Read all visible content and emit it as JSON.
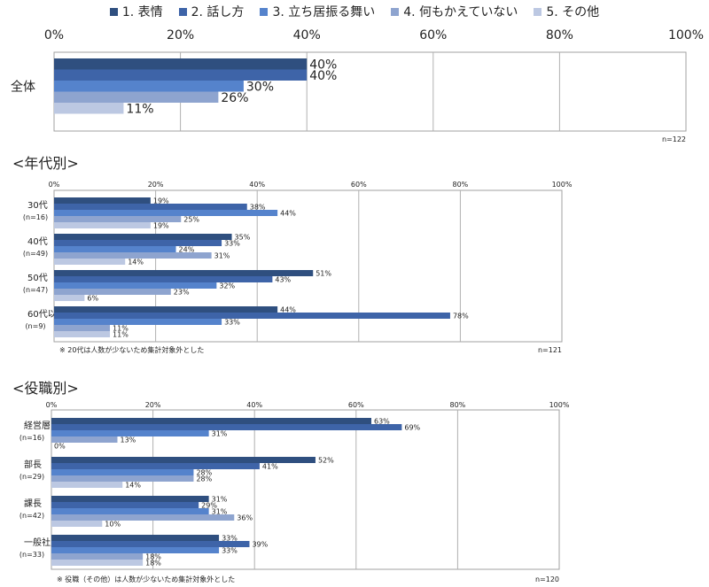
{
  "chart_data": {
    "type": "bar",
    "orientation": "horizontal",
    "series": [
      {
        "name": "1. 表情",
        "color": "#2f4f7f"
      },
      {
        "name": "2. 話し方",
        "color": "#3e64a8"
      },
      {
        "name": "3. 立ち居振る舞い",
        "color": "#5583cc"
      },
      {
        "name": "4. 何もかえていない",
        "color": "#8ea4cf"
      },
      {
        "name": "5. その他",
        "color": "#bcc8e2"
      }
    ],
    "xlim": [
      0,
      100
    ],
    "ticks": [
      "0%",
      "20%",
      "40%",
      "60%",
      "80%",
      "100%"
    ],
    "panels": [
      {
        "title": "",
        "note": "",
        "n_label": "n=122",
        "groups": [
          {
            "label": "全体",
            "sublabel": "",
            "values": [
              40,
              40,
              30,
              26,
              11
            ]
          }
        ]
      },
      {
        "title": "<年代別>",
        "note": "※ 20代は人数が少ないため集計対象外とした",
        "n_label": "n=121",
        "groups": [
          {
            "label": "30代",
            "sublabel": "(n=16)",
            "values": [
              19,
              38,
              44,
              25,
              19
            ]
          },
          {
            "label": "40代",
            "sublabel": "(n=49)",
            "values": [
              35,
              33,
              24,
              31,
              14
            ]
          },
          {
            "label": "50代",
            "sublabel": "(n=47)",
            "values": [
              51,
              43,
              32,
              23,
              6
            ]
          },
          {
            "label": "60代以上",
            "sublabel": "(n=9)",
            "values": [
              44,
              78,
              33,
              11,
              11
            ]
          }
        ]
      },
      {
        "title": "<役職別>",
        "note": "※ 役職（その他）は人数が少ないため集計対象外とした",
        "n_label": "n=120",
        "groups": [
          {
            "label": "経営層",
            "sublabel": "(n=16)",
            "values": [
              63,
              69,
              31,
              13,
              0
            ]
          },
          {
            "label": "部長",
            "sublabel": "(n=29)",
            "values": [
              52,
              41,
              28,
              28,
              14
            ]
          },
          {
            "label": "課長",
            "sublabel": "(n=42)",
            "values": [
              31,
              29,
              31,
              36,
              10
            ]
          },
          {
            "label": "一般社員",
            "sublabel": "(n=33)",
            "values": [
              33,
              39,
              33,
              18,
              18
            ]
          }
        ]
      }
    ]
  }
}
